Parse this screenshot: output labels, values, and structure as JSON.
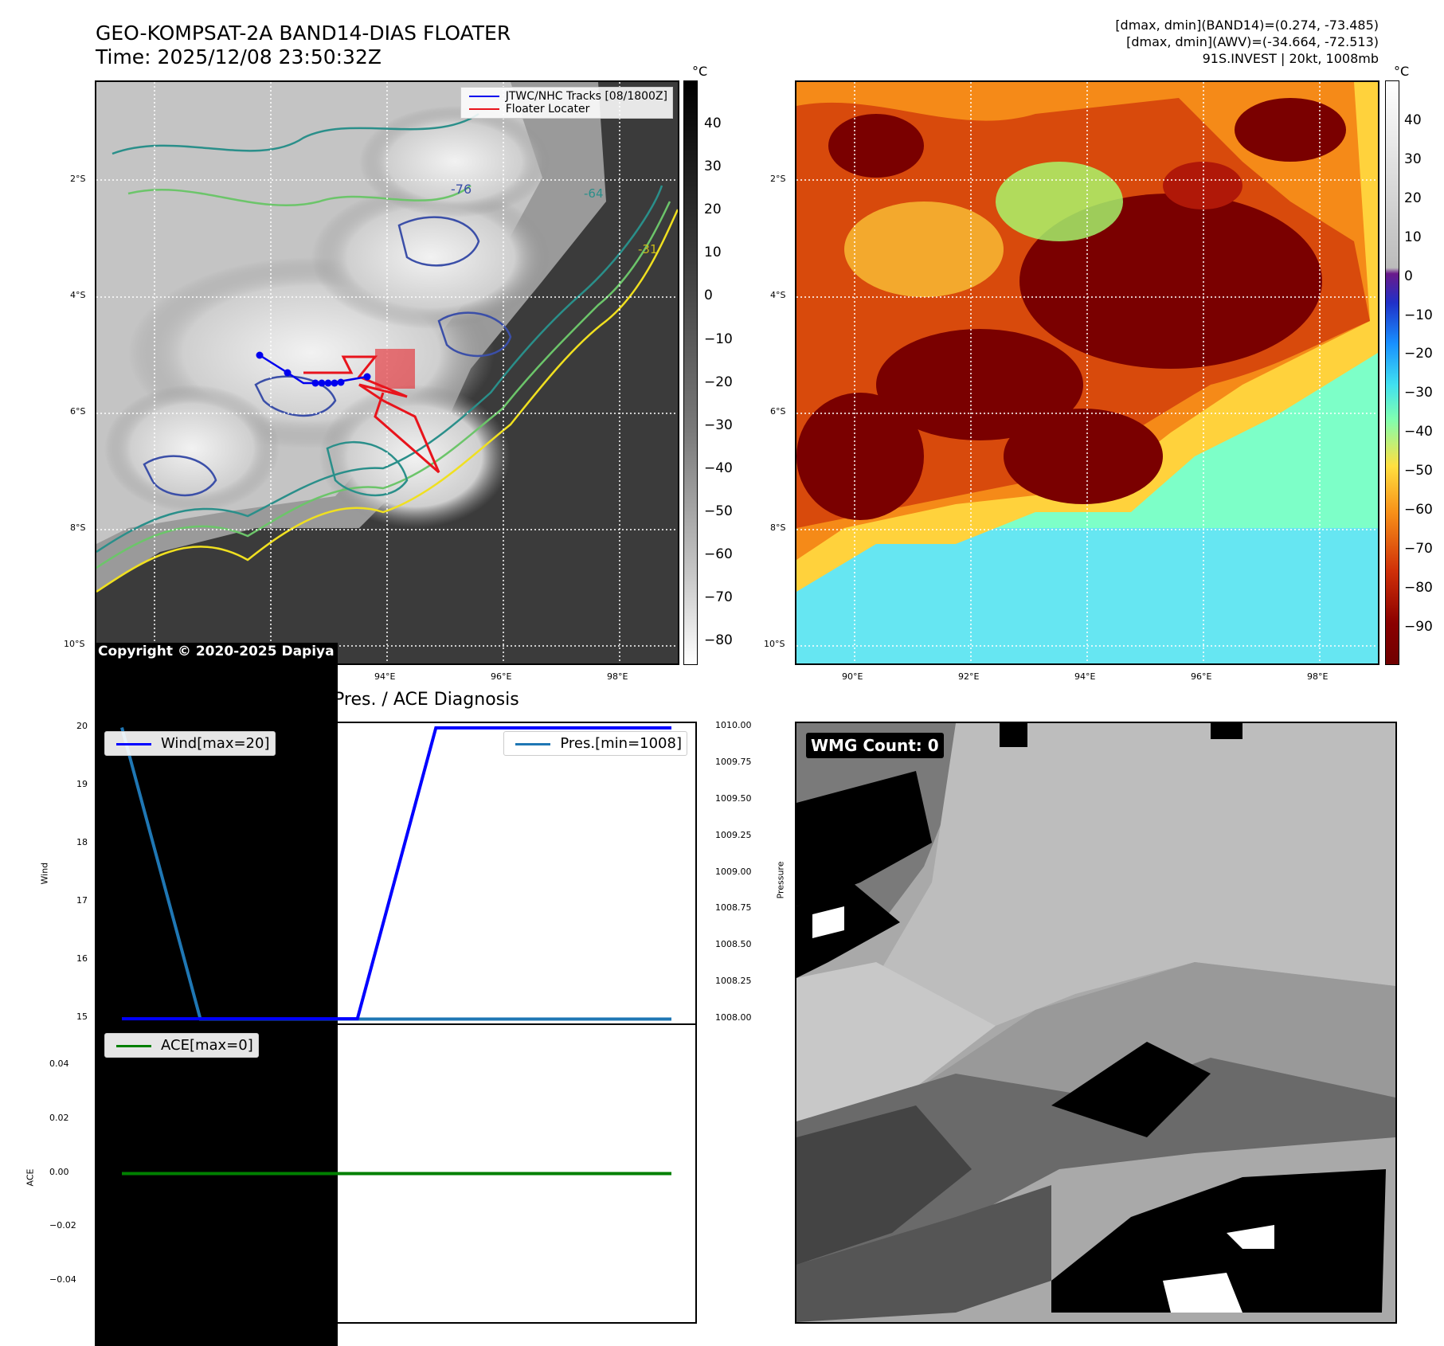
{
  "header": {
    "title_line1": "GEO-KOMPSAT-2A BAND14-DIAS FLOATER",
    "title_line2": "Time: 2025/12/08 23:50:32Z",
    "info_line1": "[dmax, dmin](BAND14)=(0.274, -73.485)",
    "info_line2": "[dmax, dmin](AWV)=(-34.664, -72.513)",
    "info_line3": "91S.INVEST | 20kt, 1008mb"
  },
  "maps": {
    "lat_labels": [
      "2°S",
      "4°S",
      "6°S",
      "8°S",
      "10°S"
    ],
    "lon_labels": [
      "90°E",
      "92°E",
      "94°E",
      "96°E",
      "98°E"
    ],
    "contour_labels": [
      "-76",
      "-64",
      "-31"
    ],
    "copyright": "Copyright © 2020-2025 Dapiya",
    "legend_tracks": "JTWC/NHC Tracks [08/1800Z]",
    "legend_floater": "Floater Locater",
    "colorbar_unit": "°C",
    "colorbar1_ticks": [
      "40",
      "30",
      "20",
      "10",
      "0",
      "−10",
      "−20",
      "−30",
      "−40",
      "−50",
      "−60",
      "−70",
      "−80"
    ],
    "colorbar2_ticks": [
      "40",
      "30",
      "20",
      "10",
      "0",
      "−10",
      "−20",
      "−30",
      "−40",
      "−50",
      "−60",
      "−70",
      "−80",
      "−90"
    ],
    "colors": {
      "track": "#0000ee",
      "floater": "#e8141c",
      "contour_cold": "#3b4fa8",
      "contour_mid": "#2a8f8a",
      "contour_warm": "#f0e020",
      "ir_warm": "#3a3a3a"
    }
  },
  "diagnosis": {
    "title": "Wind / Pres. / ACE Diagnosis",
    "wind_ylabel": "Wind",
    "pressure_ylabel": "Pressure",
    "ace_ylabel": "ACE",
    "wind_legend": "Wind[max=20]",
    "pres_legend": "Pres.[min=1008]",
    "ace_legend": "ACE[max=0]",
    "wind_ticks": [
      "20",
      "19",
      "18",
      "17",
      "16",
      "15"
    ],
    "pres_ticks": [
      "1010.00",
      "1009.75",
      "1009.50",
      "1009.25",
      "1009.00",
      "1008.75",
      "1008.50",
      "1008.25",
      "1008.00"
    ],
    "ace_ticks": [
      "0.04",
      "0.02",
      "0.00",
      "−0.02",
      "−0.04"
    ],
    "colors": {
      "wind": "#0000ff",
      "pressure": "#1f77b4",
      "ace": "#008000"
    }
  },
  "wmg": {
    "label": "WMG Count: 0"
  },
  "chart_data": [
    {
      "type": "line",
      "title": "Wind / Pres. / ACE Diagnosis",
      "x": [
        0,
        1,
        2,
        3,
        4,
        5,
        6,
        7
      ],
      "series": [
        {
          "name": "Wind[max=20]",
          "axis": "left",
          "values": [
            15,
            15,
            15,
            15,
            20,
            20,
            20,
            20
          ]
        },
        {
          "name": "Pres.[min=1008]",
          "axis": "right",
          "values": [
            1010,
            1008,
            1008,
            1008,
            1008,
            1008,
            1008,
            1008
          ]
        }
      ],
      "ylabel": "Wind",
      "y2label": "Pressure",
      "ylim": [
        14.92,
        20.08
      ],
      "y2lim": [
        1007.97,
        1010.03
      ],
      "legend": "top-left / top-right"
    },
    {
      "type": "line",
      "x": [
        0,
        1,
        2,
        3,
        4,
        5,
        6,
        7
      ],
      "series": [
        {
          "name": "ACE[max=0]",
          "values": [
            0,
            0,
            0,
            0,
            0,
            0,
            0,
            0
          ]
        }
      ],
      "ylabel": "ACE",
      "ylim": [
        -0.055,
        0.055
      ],
      "legend": "top-left"
    }
  ]
}
